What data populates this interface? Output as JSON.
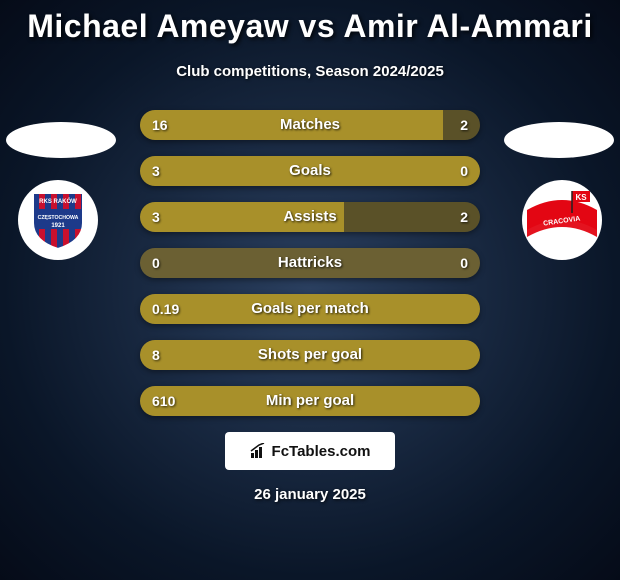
{
  "header": {
    "title": "Michael Ameyaw vs Amir Al-Ammari",
    "subtitle": "Club competitions, Season 2024/2025"
  },
  "colors": {
    "bar_left": "#a8902a",
    "bar_right": "#5a5128",
    "bar_neutral": "#6b6033",
    "text": "#ffffff"
  },
  "crest_left": {
    "bg": "#ffffff",
    "stripes": [
      "#c8102e",
      "#1d3a8a"
    ],
    "band": "#1d3a8a",
    "text_top": "RKS RAKÓW",
    "text_mid": "CZĘSTOCHOWA",
    "year": "1921"
  },
  "crest_right": {
    "bg": "#ffffff",
    "stripe": "#e30613",
    "flag_text": "KS",
    "band_text": "CRACOVIA"
  },
  "stats": [
    {
      "label": "Matches",
      "left_val": "16",
      "right_val": "2",
      "left_pct": 89,
      "right_pct": 11
    },
    {
      "label": "Goals",
      "left_val": "3",
      "right_val": "0",
      "left_pct": 100,
      "right_pct": 0
    },
    {
      "label": "Assists",
      "left_val": "3",
      "right_val": "2",
      "left_pct": 60,
      "right_pct": 40
    },
    {
      "label": "Hattricks",
      "left_val": "0",
      "right_val": "0",
      "left_pct": 50,
      "right_pct": 50,
      "neutral": true
    },
    {
      "label": "Goals per match",
      "left_val": "0.19",
      "right_val": "",
      "left_pct": 100,
      "right_pct": 0
    },
    {
      "label": "Shots per goal",
      "left_val": "8",
      "right_val": "",
      "left_pct": 100,
      "right_pct": 0
    },
    {
      "label": "Min per goal",
      "left_val": "610",
      "right_val": "",
      "left_pct": 100,
      "right_pct": 0
    }
  ],
  "footer": {
    "brand": "FcTables.com",
    "date": "26 january 2025"
  }
}
